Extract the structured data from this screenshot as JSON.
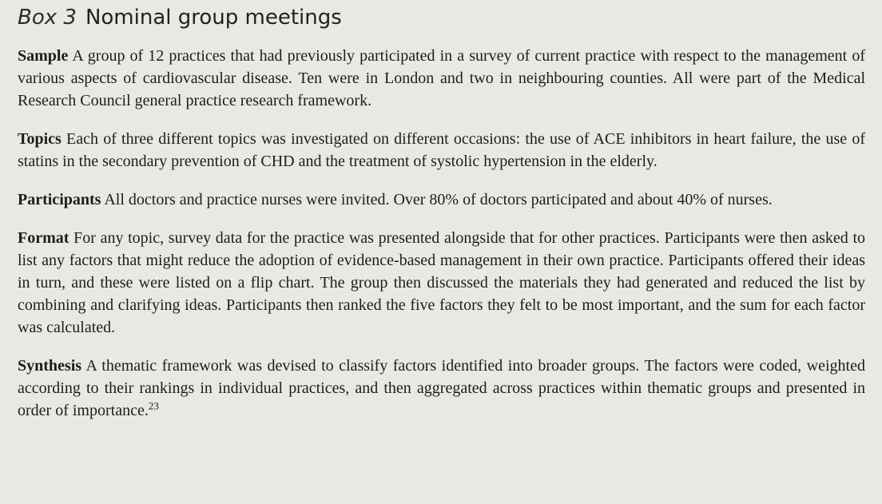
{
  "colors": {
    "background": "#e9e8e5",
    "text": "#1d1d1b"
  },
  "box": {
    "label": "Box 3",
    "title": "Nominal group meetings",
    "sections": [
      {
        "heading": "Sample",
        "text": "A group of 12 practices that had previously participated in a survey of current practice with respect to the management of various aspects of cardiovascular disease. Ten were in London and two in neighbouring counties. All were part of the Medical Research Council general practice research framework."
      },
      {
        "heading": "Topics",
        "text": "Each of three different topics was investigated on different occasions: the use of ACE inhibitors in heart failure, the use of statins in the secondary prevention of CHD and the treatment of systolic hypertension in the elderly."
      },
      {
        "heading": "Participants",
        "text": "All doctors and practice nurses were invited. Over 80% of doctors participated and about 40% of nurses."
      },
      {
        "heading": "Format",
        "text": "For any topic, survey data for the practice was presented alongside that for other practices. Participants were then asked to list any factors that might reduce the adoption of evidence-based management in their own practice. Participants offered their ideas in turn, and these were listed on a flip chart. The group then discussed the materials they had generated and reduced the list by combining and clarifying ideas. Participants then ranked the five factors they felt to be most important, and the sum for each factor was calculated."
      },
      {
        "heading": "Synthesis",
        "text": "A thematic framework was devised to classify factors identified into broader groups. The factors were coded, weighted according to their rankings in individual practices, and then aggregated across practices within thematic groups and presented in order of importance.",
        "reference": "23"
      }
    ]
  }
}
